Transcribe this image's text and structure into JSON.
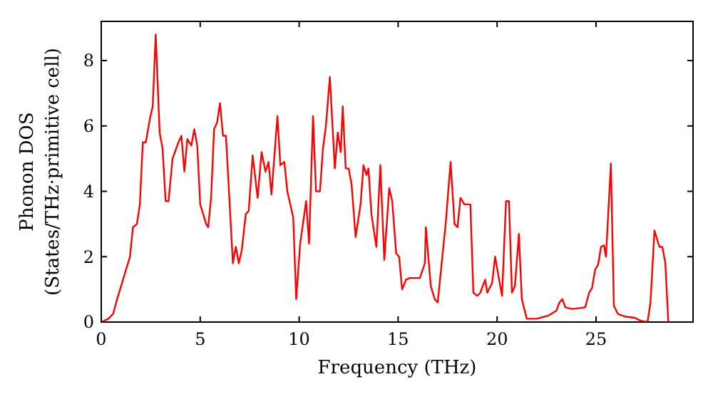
{
  "chart_data": {
    "type": "line",
    "xlabel": "Frequency (THz)",
    "ylabel": "Phonon DOS\n(States/THz·primitive cell)",
    "xlim": [
      0,
      29.9
    ],
    "ylim": [
      0,
      9.2
    ],
    "xticks": [
      0,
      5,
      10,
      15,
      20,
      25
    ],
    "yticks": [
      0,
      2,
      4,
      6,
      8
    ],
    "grid": false,
    "marker": "none",
    "line_style": "solid",
    "series": [
      {
        "color": "#ff0000",
        "x": [
          0,
          0.36,
          0.6,
          0.8,
          1.0,
          1.2,
          1.45,
          1.6,
          1.8,
          1.95,
          2.1,
          2.25,
          2.45,
          2.6,
          2.75,
          2.95,
          3.1,
          3.25,
          3.4,
          3.6,
          3.9,
          4.05,
          4.2,
          4.35,
          4.55,
          4.7,
          4.85,
          5.0,
          5.3,
          5.4,
          5.55,
          5.7,
          5.85,
          6.0,
          6.15,
          6.3,
          6.65,
          6.8,
          6.95,
          7.1,
          7.3,
          7.45,
          7.65,
          7.9,
          8.1,
          8.3,
          8.45,
          8.6,
          8.9,
          9.05,
          9.25,
          9.4,
          9.7,
          9.85,
          10.05,
          10.35,
          10.5,
          10.7,
          10.85,
          11.05,
          11.2,
          11.35,
          11.55,
          11.8,
          11.95,
          12.1,
          12.2,
          12.35,
          12.5,
          12.65,
          12.85,
          13.1,
          13.25,
          13.4,
          13.5,
          13.65,
          13.9,
          14.1,
          14.3,
          14.55,
          14.7,
          14.9,
          15.05,
          15.2,
          15.4,
          15.6,
          16.1,
          16.35,
          16.4,
          16.65,
          16.85,
          17.0,
          17.2,
          17.4,
          17.65,
          17.85,
          18.0,
          18.15,
          18.35,
          18.65,
          18.8,
          19.0,
          19.15,
          19.4,
          19.5,
          19.75,
          19.9,
          20.1,
          20.25,
          20.45,
          20.6,
          20.75,
          20.9,
          21.1,
          21.25,
          21.5,
          22.0,
          22.6,
          23.0,
          23.15,
          23.3,
          23.45,
          23.8,
          24.45,
          24.65,
          24.8,
          24.95,
          25.1,
          25.25,
          25.4,
          25.5,
          25.75,
          25.9,
          26.1,
          26.45,
          26.95,
          27.25,
          27.6,
          27.75,
          27.95,
          28.2,
          28.35,
          28.5,
          28.65
        ],
        "values": [
          0,
          0.1,
          0.25,
          0.7,
          1.1,
          1.5,
          2.0,
          2.9,
          3.0,
          3.6,
          5.5,
          5.5,
          6.2,
          6.6,
          8.8,
          5.8,
          5.3,
          3.7,
          3.7,
          5.0,
          5.5,
          5.7,
          4.6,
          5.6,
          5.4,
          5.9,
          5.4,
          3.6,
          3.0,
          2.9,
          3.8,
          5.9,
          6.1,
          6.7,
          5.7,
          5.7,
          1.8,
          2.3,
          1.8,
          2.2,
          3.3,
          3.4,
          5.1,
          3.8,
          5.2,
          4.6,
          4.9,
          3.9,
          6.3,
          4.8,
          4.9,
          4.0,
          3.2,
          0.7,
          2.4,
          3.7,
          2.4,
          6.3,
          4.0,
          4.0,
          5.3,
          6.0,
          7.5,
          4.7,
          5.8,
          5.2,
          6.6,
          4.7,
          4.7,
          4.2,
          2.6,
          3.6,
          4.8,
          4.5,
          4.7,
          3.3,
          2.3,
          4.8,
          1.9,
          4.1,
          3.7,
          2.1,
          2.0,
          1.0,
          1.3,
          1.35,
          1.35,
          1.8,
          2.9,
          1.1,
          0.7,
          0.6,
          1.8,
          3.0,
          4.9,
          3.0,
          2.9,
          3.8,
          3.6,
          3.6,
          0.9,
          0.8,
          0.9,
          1.3,
          0.9,
          1.2,
          2.0,
          1.3,
          0.8,
          3.7,
          3.7,
          0.9,
          1.1,
          2.7,
          0.7,
          0.1,
          0.1,
          0.2,
          0.35,
          0.6,
          0.7,
          0.45,
          0.4,
          0.45,
          0.9,
          1.05,
          1.6,
          1.75,
          2.3,
          2.35,
          2.0,
          4.85,
          0.5,
          0.25,
          0.17,
          0.13,
          0.04,
          0,
          0.6,
          2.8,
          2.3,
          2.3,
          1.8,
          0
        ]
      }
    ]
  }
}
